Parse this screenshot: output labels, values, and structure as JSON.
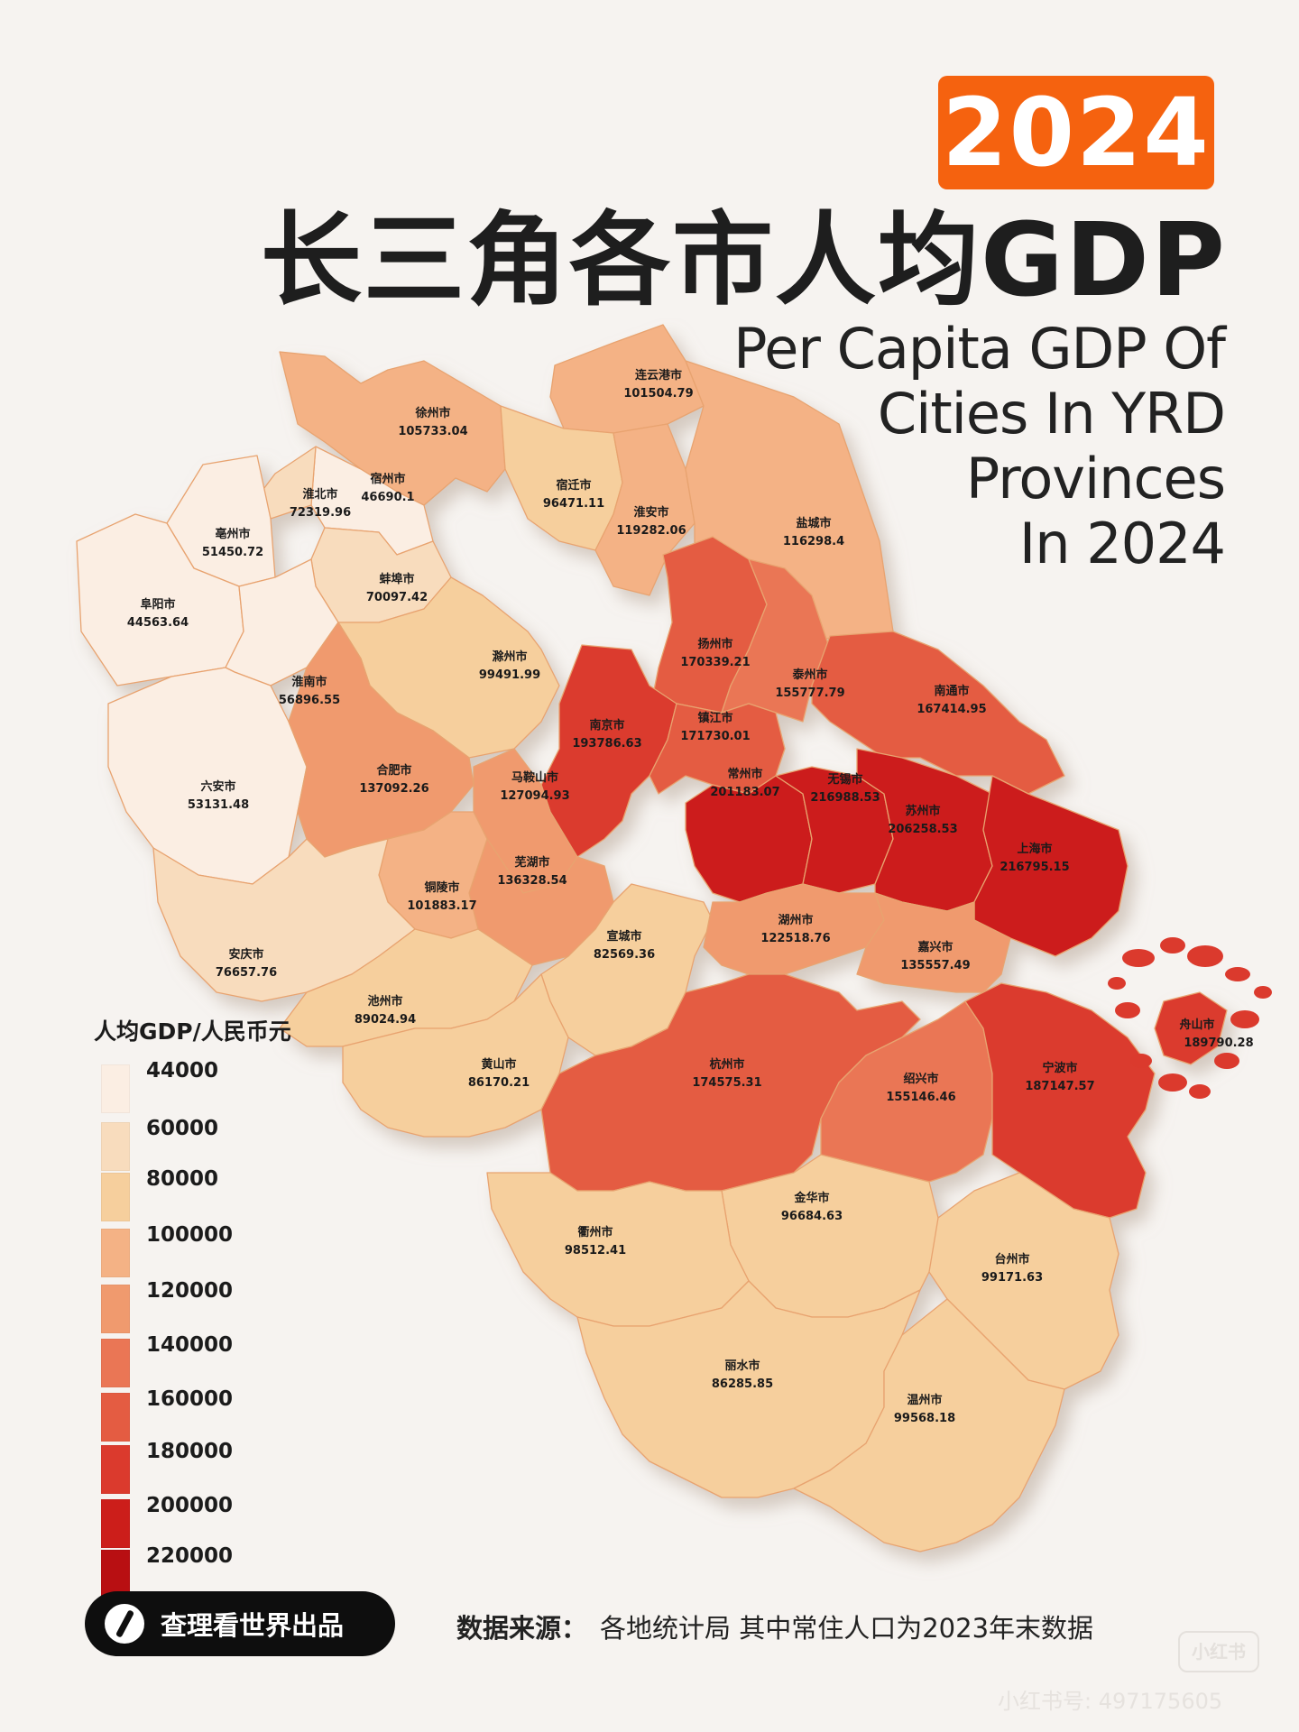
{
  "year": "2024",
  "title_cn": "长三角各市人均GDP",
  "title_en": [
    "Per Capita GDP Of",
    "Cities In YRD",
    "Provinces",
    "In 2024"
  ],
  "legend": {
    "title": "人均GDP/人民币元",
    "bins": [
      {
        "label": "44000",
        "color": "#fbeee3"
      },
      {
        "label": "60000",
        "color": "#f8dcbd"
      },
      {
        "label": "80000",
        "color": "#f6cf9d"
      },
      {
        "label": "100000",
        "color": "#f4b285"
      },
      {
        "label": "120000",
        "color": "#f09a6e"
      },
      {
        "label": "140000",
        "color": "#ea7655"
      },
      {
        "label": "160000",
        "color": "#e45c42"
      },
      {
        "label": "180000",
        "color": "#db3a2d"
      },
      {
        "label": "200000",
        "color": "#cc1e1a"
      },
      {
        "label": "220000",
        "color": "#b80f12"
      }
    ]
  },
  "cities": [
    {
      "name": "连云港市",
      "value": "101504.79",
      "gdp": 101504.79
    },
    {
      "name": "徐州市",
      "value": "105733.04",
      "gdp": 105733.04
    },
    {
      "name": "宿州市",
      "value": "46690.1",
      "gdp": 46690.1
    },
    {
      "name": "淮北市",
      "value": "72319.96",
      "gdp": 72319.96
    },
    {
      "name": "宿迁市",
      "value": "96471.11",
      "gdp": 96471.11
    },
    {
      "name": "淮安市",
      "value": "119282.06",
      "gdp": 119282.06
    },
    {
      "name": "盐城市",
      "value": "116298.4",
      "gdp": 116298.4
    },
    {
      "name": "亳州市",
      "value": "51450.72",
      "gdp": 51450.72
    },
    {
      "name": "蚌埠市",
      "value": "70097.42",
      "gdp": 70097.42
    },
    {
      "name": "阜阳市",
      "value": "44563.64",
      "gdp": 44563.64
    },
    {
      "name": "淮南市",
      "value": "56896.55",
      "gdp": 56896.55
    },
    {
      "name": "滁州市",
      "value": "99491.99",
      "gdp": 99491.99
    },
    {
      "name": "扬州市",
      "value": "170339.21",
      "gdp": 170339.21
    },
    {
      "name": "泰州市",
      "value": "155777.79",
      "gdp": 155777.79
    },
    {
      "name": "南通市",
      "value": "167414.95",
      "gdp": 167414.95
    },
    {
      "name": "南京市",
      "value": "193786.63",
      "gdp": 193786.63
    },
    {
      "name": "镇江市",
      "value": "171730.01",
      "gdp": 171730.01
    },
    {
      "name": "六安市",
      "value": "53131.48",
      "gdp": 53131.48
    },
    {
      "name": "合肥市",
      "value": "137092.26",
      "gdp": 137092.26
    },
    {
      "name": "马鞍山市",
      "value": "127094.93",
      "gdp": 127094.93
    },
    {
      "name": "常州市",
      "value": "201183.07",
      "gdp": 201183.07
    },
    {
      "name": "无锡市",
      "value": "216988.53",
      "gdp": 216988.53
    },
    {
      "name": "苏州市",
      "value": "206258.53",
      "gdp": 206258.53
    },
    {
      "name": "上海市",
      "value": "216795.15",
      "gdp": 216795.15
    },
    {
      "name": "芜湖市",
      "value": "136328.54",
      "gdp": 136328.54
    },
    {
      "name": "铜陵市",
      "value": "101883.17",
      "gdp": 101883.17
    },
    {
      "name": "安庆市",
      "value": "76657.76",
      "gdp": 76657.76
    },
    {
      "name": "宣城市",
      "value": "82569.36",
      "gdp": 82569.36
    },
    {
      "name": "湖州市",
      "value": "122518.76",
      "gdp": 122518.76
    },
    {
      "name": "嘉兴市",
      "value": "135557.49",
      "gdp": 135557.49
    },
    {
      "name": "池州市",
      "value": "89024.94",
      "gdp": 89024.94
    },
    {
      "name": "舟山市",
      "value": "189790.28",
      "gdp": 189790.28
    },
    {
      "name": "黄山市",
      "value": "86170.21",
      "gdp": 86170.21
    },
    {
      "name": "杭州市",
      "value": "174575.31",
      "gdp": 174575.31
    },
    {
      "name": "绍兴市",
      "value": "155146.46",
      "gdp": 155146.46
    },
    {
      "name": "宁波市",
      "value": "187147.57",
      "gdp": 187147.57
    },
    {
      "name": "金华市",
      "value": "96684.63",
      "gdp": 96684.63
    },
    {
      "name": "衢州市",
      "value": "98512.41",
      "gdp": 98512.41
    },
    {
      "name": "台州市",
      "value": "99171.63",
      "gdp": 99171.63
    },
    {
      "name": "丽水市",
      "value": "86285.85",
      "gdp": 86285.85
    },
    {
      "name": "温州市",
      "value": "99568.18",
      "gdp": 99568.18
    }
  ],
  "brand": {
    "icon": "brand-logo-icon",
    "text": "查理看世界出品"
  },
  "source": {
    "label": "数据来源：",
    "text": "各地统计局  其中常住人口为2023年末数据"
  },
  "watermark": "小红书号: 497175605",
  "platform_logo": "小红书"
}
